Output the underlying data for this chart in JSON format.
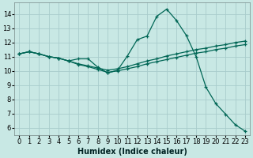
{
  "xlabel": "Humidex (Indice chaleur)",
  "background_color": "#c8e8e4",
  "grid_color": "#a8cccc",
  "line_color": "#006655",
  "xlim": [
    -0.5,
    23.5
  ],
  "ylim": [
    5.5,
    14.8
  ],
  "xtick_vals": [
    0,
    1,
    2,
    3,
    4,
    5,
    6,
    7,
    8,
    9,
    10,
    11,
    12,
    13,
    14,
    15,
    16,
    17,
    18,
    19,
    20,
    21,
    22,
    23
  ],
  "ytick_vals": [
    6,
    7,
    8,
    9,
    10,
    11,
    12,
    13,
    14
  ],
  "series1_y": [
    11.2,
    11.35,
    11.2,
    11.0,
    10.9,
    10.7,
    10.85,
    10.85,
    10.25,
    9.85,
    10.05,
    11.05,
    12.2,
    12.45,
    13.85,
    14.35,
    13.55,
    12.5,
    11.0,
    8.85,
    7.7,
    6.95,
    6.2,
    5.75
  ],
  "series2_y": [
    11.2,
    11.35,
    11.2,
    11.0,
    10.9,
    10.7,
    10.5,
    10.35,
    10.2,
    10.05,
    10.15,
    10.3,
    10.5,
    10.7,
    10.85,
    11.05,
    11.2,
    11.35,
    11.5,
    11.6,
    11.75,
    11.85,
    12.0,
    12.1
  ],
  "series3_y": [
    11.2,
    11.35,
    11.2,
    11.0,
    10.9,
    10.7,
    10.45,
    10.3,
    10.1,
    9.9,
    10.0,
    10.15,
    10.3,
    10.5,
    10.65,
    10.8,
    10.95,
    11.1,
    11.25,
    11.35,
    11.5,
    11.6,
    11.75,
    11.85
  ],
  "fontsize_label": 7,
  "fontsize_tick": 6,
  "line_width": 0.9,
  "marker_size": 3.0
}
